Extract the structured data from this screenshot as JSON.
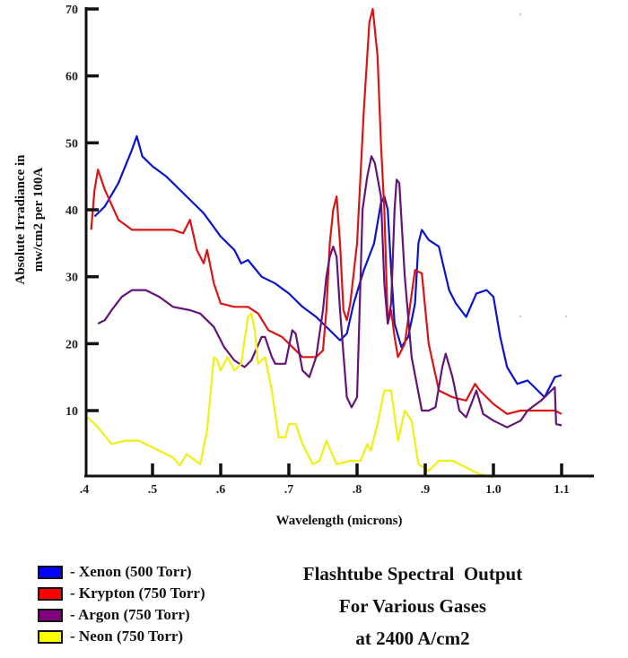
{
  "title": {
    "lines": [
      "Flashtube Spectral  Output",
      "For Various Gases",
      "at 2400 A/cm2"
    ]
  },
  "axes": {
    "xlabel": "Wavelength (microns)",
    "ylabel_line1": "Absolute Irradiance in",
    "ylabel_line2": "mw/cm2 per 100A",
    "xticks": [
      ".4",
      ".5",
      ".6",
      ".7",
      ".8",
      ".9",
      "1.0",
      "1.1"
    ],
    "yticks": [
      "10",
      "20",
      "30",
      "40",
      "50",
      "60",
      "70"
    ]
  },
  "legend": [
    {
      "label": "- Xenon (500 Torr)",
      "color": "#0000ff"
    },
    {
      "label": "- Krypton (750 Torr)",
      "color": "#ff0000"
    },
    {
      "label": "- Argon (750 Torr)",
      "color": "#800080"
    },
    {
      "label": "- Neon (750 Torr)",
      "color": "#ffff00"
    }
  ],
  "chart_data": {
    "type": "line",
    "title": "Flashtube Spectral Output For Various Gases at 2400 A/cm2",
    "xlabel": "Wavelength (microns)",
    "ylabel": "Absolute Irradiance in mw/cm2 per 100A",
    "xlim": [
      0.4,
      1.15
    ],
    "ylim": [
      0,
      70
    ],
    "xticks": [
      0.4,
      0.5,
      0.6,
      0.7,
      0.8,
      0.9,
      1.0,
      1.1
    ],
    "yticks": [
      10,
      20,
      30,
      40,
      50,
      60,
      70
    ],
    "grid": false,
    "legend_position": "bottom-left",
    "series": [
      {
        "name": "Xenon (500 Torr)",
        "color": "#0a14c8",
        "points": [
          [
            0.415,
            39
          ],
          [
            0.43,
            40.5
          ],
          [
            0.45,
            44
          ],
          [
            0.47,
            49
          ],
          [
            0.477,
            51
          ],
          [
            0.485,
            48
          ],
          [
            0.5,
            46.5
          ],
          [
            0.52,
            45
          ],
          [
            0.55,
            42
          ],
          [
            0.575,
            39.5
          ],
          [
            0.6,
            36
          ],
          [
            0.62,
            34
          ],
          [
            0.63,
            32
          ],
          [
            0.64,
            32.5
          ],
          [
            0.66,
            30
          ],
          [
            0.68,
            29
          ],
          [
            0.7,
            27.5
          ],
          [
            0.72,
            25.5
          ],
          [
            0.74,
            24
          ],
          [
            0.76,
            22
          ],
          [
            0.775,
            20.5
          ],
          [
            0.785,
            21.5
          ],
          [
            0.795,
            26
          ],
          [
            0.81,
            31
          ],
          [
            0.825,
            35
          ],
          [
            0.835,
            41
          ],
          [
            0.84,
            42
          ],
          [
            0.845,
            40
          ],
          [
            0.85,
            31
          ],
          [
            0.855,
            23
          ],
          [
            0.865,
            19.5
          ],
          [
            0.875,
            21
          ],
          [
            0.885,
            26
          ],
          [
            0.89,
            35
          ],
          [
            0.895,
            37
          ],
          [
            0.905,
            35.5
          ],
          [
            0.92,
            34.5
          ],
          [
            0.935,
            28
          ],
          [
            0.945,
            26
          ],
          [
            0.96,
            24
          ],
          [
            0.975,
            27.5
          ],
          [
            0.99,
            28
          ],
          [
            1.0,
            27
          ],
          [
            1.01,
            21
          ],
          [
            1.02,
            16.5
          ],
          [
            1.035,
            14
          ],
          [
            1.05,
            14.5
          ],
          [
            1.075,
            12
          ],
          [
            1.09,
            15
          ],
          [
            1.1,
            15.3
          ]
        ]
      },
      {
        "name": "Krypton (750 Torr)",
        "color": "#dc1414",
        "points": [
          [
            0.41,
            37
          ],
          [
            0.415,
            43
          ],
          [
            0.42,
            46
          ],
          [
            0.43,
            43
          ],
          [
            0.45,
            38.5
          ],
          [
            0.47,
            37
          ],
          [
            0.5,
            37
          ],
          [
            0.53,
            37
          ],
          [
            0.545,
            36.5
          ],
          [
            0.555,
            38.5
          ],
          [
            0.565,
            34
          ],
          [
            0.575,
            32
          ],
          [
            0.58,
            34
          ],
          [
            0.59,
            29
          ],
          [
            0.6,
            26
          ],
          [
            0.62,
            25.5
          ],
          [
            0.64,
            25.5
          ],
          [
            0.655,
            24.5
          ],
          [
            0.67,
            22
          ],
          [
            0.69,
            21
          ],
          [
            0.71,
            19
          ],
          [
            0.72,
            18
          ],
          [
            0.74,
            18
          ],
          [
            0.75,
            19
          ],
          [
            0.755,
            25
          ],
          [
            0.76,
            35
          ],
          [
            0.765,
            40
          ],
          [
            0.77,
            42
          ],
          [
            0.775,
            35
          ],
          [
            0.78,
            25
          ],
          [
            0.785,
            23.5
          ],
          [
            0.79,
            26
          ],
          [
            0.8,
            35
          ],
          [
            0.81,
            55
          ],
          [
            0.818,
            68
          ],
          [
            0.823,
            70
          ],
          [
            0.83,
            63
          ],
          [
            0.835,
            50
          ],
          [
            0.84,
            40
          ],
          [
            0.845,
            23
          ],
          [
            0.85,
            25
          ],
          [
            0.855,
            21
          ],
          [
            0.86,
            18
          ],
          [
            0.87,
            20
          ],
          [
            0.885,
            31
          ],
          [
            0.895,
            30.5
          ],
          [
            0.905,
            20
          ],
          [
            0.92,
            13
          ],
          [
            0.94,
            12
          ],
          [
            0.96,
            11.5
          ],
          [
            0.973,
            14
          ],
          [
            0.98,
            13
          ],
          [
            1.0,
            11
          ],
          [
            1.02,
            9.5
          ],
          [
            1.04,
            10
          ],
          [
            1.06,
            10
          ],
          [
            1.08,
            10
          ],
          [
            1.09,
            10
          ],
          [
            1.1,
            9.5
          ]
        ]
      },
      {
        "name": "Argon (750 Torr)",
        "color": "#641478",
        "points": [
          [
            0.42,
            23
          ],
          [
            0.43,
            23.5
          ],
          [
            0.44,
            25
          ],
          [
            0.455,
            27
          ],
          [
            0.47,
            28
          ],
          [
            0.49,
            28
          ],
          [
            0.51,
            27
          ],
          [
            0.53,
            25.5
          ],
          [
            0.555,
            25
          ],
          [
            0.57,
            24.5
          ],
          [
            0.59,
            22.5
          ],
          [
            0.605,
            19.5
          ],
          [
            0.62,
            17.5
          ],
          [
            0.635,
            16.5
          ],
          [
            0.645,
            17.5
          ],
          [
            0.66,
            21
          ],
          [
            0.665,
            21
          ],
          [
            0.675,
            18
          ],
          [
            0.68,
            17
          ],
          [
            0.695,
            17
          ],
          [
            0.705,
            22
          ],
          [
            0.71,
            21.5
          ],
          [
            0.72,
            16
          ],
          [
            0.73,
            15
          ],
          [
            0.74,
            18
          ],
          [
            0.75,
            25
          ],
          [
            0.755,
            30
          ],
          [
            0.76,
            33
          ],
          [
            0.765,
            34.5
          ],
          [
            0.77,
            33
          ],
          [
            0.775,
            25
          ],
          [
            0.785,
            12
          ],
          [
            0.792,
            10.5
          ],
          [
            0.8,
            12
          ],
          [
            0.808,
            40
          ],
          [
            0.815,
            45
          ],
          [
            0.821,
            48
          ],
          [
            0.826,
            47
          ],
          [
            0.835,
            42
          ],
          [
            0.84,
            29
          ],
          [
            0.845,
            23
          ],
          [
            0.85,
            26
          ],
          [
            0.855,
            40
          ],
          [
            0.858,
            44.5
          ],
          [
            0.862,
            44
          ],
          [
            0.87,
            30
          ],
          [
            0.88,
            18
          ],
          [
            0.895,
            10
          ],
          [
            0.905,
            10
          ],
          [
            0.915,
            10.5
          ],
          [
            0.925,
            16.5
          ],
          [
            0.93,
            18.5
          ],
          [
            0.94,
            15
          ],
          [
            0.95,
            10
          ],
          [
            0.96,
            9
          ],
          [
            0.975,
            13
          ],
          [
            0.985,
            9.5
          ],
          [
            1.0,
            8.5
          ],
          [
            1.02,
            7.5
          ],
          [
            1.04,
            8.5
          ],
          [
            1.05,
            10
          ],
          [
            1.07,
            11.5
          ],
          [
            1.09,
            13.5
          ],
          [
            1.092,
            8
          ],
          [
            1.1,
            7.8
          ]
        ]
      },
      {
        "name": "Neon (750 Torr)",
        "color": "#f0f014",
        "points": [
          [
            0.405,
            9
          ],
          [
            0.42,
            7.5
          ],
          [
            0.44,
            5
          ],
          [
            0.46,
            5.5
          ],
          [
            0.48,
            5.5
          ],
          [
            0.5,
            4.5
          ],
          [
            0.53,
            3
          ],
          [
            0.54,
            1.8
          ],
          [
            0.55,
            3.5
          ],
          [
            0.57,
            2
          ],
          [
            0.58,
            7
          ],
          [
            0.59,
            18
          ],
          [
            0.595,
            17.5
          ],
          [
            0.6,
            16
          ],
          [
            0.61,
            18
          ],
          [
            0.62,
            16
          ],
          [
            0.63,
            17
          ],
          [
            0.64,
            24
          ],
          [
            0.645,
            24.5
          ],
          [
            0.65,
            22
          ],
          [
            0.655,
            17
          ],
          [
            0.665,
            18
          ],
          [
            0.675,
            13
          ],
          [
            0.685,
            6
          ],
          [
            0.695,
            6
          ],
          [
            0.7,
            8
          ],
          [
            0.71,
            8
          ],
          [
            0.72,
            5
          ],
          [
            0.735,
            2
          ],
          [
            0.745,
            2.5
          ],
          [
            0.755,
            5.5
          ],
          [
            0.77,
            2
          ],
          [
            0.79,
            2.5
          ],
          [
            0.805,
            2.5
          ],
          [
            0.815,
            5
          ],
          [
            0.82,
            4
          ],
          [
            0.83,
            8
          ],
          [
            0.84,
            13
          ],
          [
            0.85,
            13
          ],
          [
            0.86,
            5.5
          ],
          [
            0.87,
            10
          ],
          [
            0.88,
            8.5
          ],
          [
            0.89,
            2
          ],
          [
            0.905,
            1
          ],
          [
            0.92,
            2.5
          ],
          [
            0.94,
            2.5
          ],
          [
            0.96,
            1.5
          ],
          [
            0.98,
            0.5
          ],
          [
            1.0,
            0
          ]
        ]
      }
    ]
  }
}
